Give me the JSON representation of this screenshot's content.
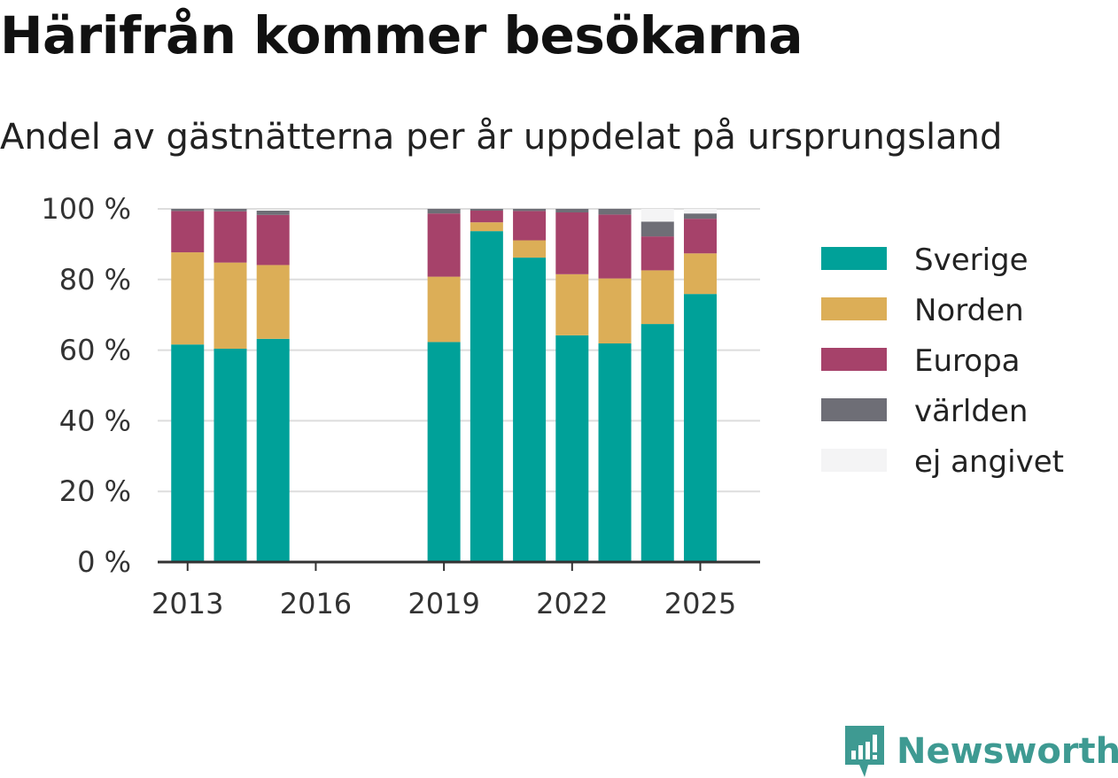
{
  "title": "Härifrån kommer besökarna",
  "subtitle": "Andel av gästnätterna per år uppdelat på ursprungsland",
  "brand": {
    "name": "Newsworthy",
    "icon": "newsworthy-logo-icon",
    "color": "#3e9a92"
  },
  "chart_data": {
    "type": "bar",
    "stacked": true,
    "x": [
      2013,
      2014,
      2015,
      2019,
      2020,
      2021,
      2022,
      2023,
      2024,
      2025
    ],
    "xlim": [
      2012.3,
      2026.4
    ],
    "x_ticks": [
      2013,
      2016,
      2019,
      2022,
      2025
    ],
    "ylim": [
      0,
      100
    ],
    "y_ticks": [
      0,
      20,
      40,
      60,
      80,
      100
    ],
    "y_tick_labels": [
      "0 %",
      "20 %",
      "40 %",
      "60 %",
      "80 %",
      "100 %"
    ],
    "grid": true,
    "legend_position": "right",
    "series": [
      {
        "name": "Sverige",
        "color": "#00a199",
        "values": [
          61.6,
          60.4,
          63.2,
          62.3,
          93.7,
          86.2,
          64.2,
          61.9,
          67.4,
          75.9
        ]
      },
      {
        "name": "Norden",
        "color": "#dcae57",
        "values": [
          26.1,
          24.4,
          20.9,
          18.5,
          2.5,
          4.9,
          17.3,
          18.4,
          15.2,
          11.5
        ]
      },
      {
        "name": "Europa",
        "color": "#a6426a",
        "values": [
          11.7,
          14.5,
          14.2,
          17.9,
          3.3,
          8.3,
          17.5,
          18.1,
          9.6,
          9.8
        ]
      },
      {
        "name": "världen",
        "color": "#6e6e76",
        "values": [
          0.6,
          0.7,
          1.2,
          1.3,
          0.5,
          0.6,
          1.0,
          1.6,
          4.2,
          1.5
        ]
      },
      {
        "name": "ej angivet",
        "color": "#f4f4f5",
        "values": [
          0,
          0,
          0,
          0,
          0,
          0,
          0,
          0,
          3.6,
          1.3
        ]
      }
    ]
  }
}
